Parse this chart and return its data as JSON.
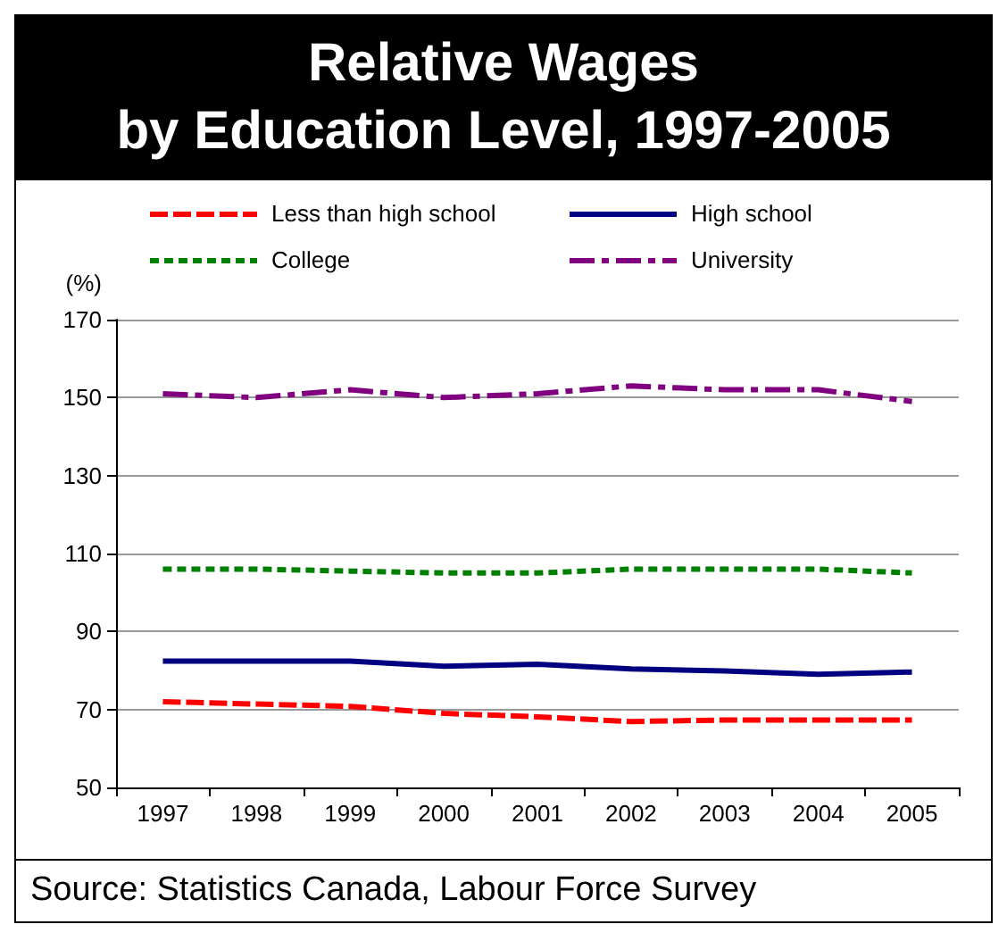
{
  "chart_data": {
    "type": "line",
    "title": "Relative Wages\nby Education Level, 1997-2005",
    "ylabel": "(%)",
    "categories": [
      "1997",
      "1998",
      "1999",
      "2000",
      "2001",
      "2002",
      "2003",
      "2004",
      "2005"
    ],
    "series": [
      {
        "name": "Less than high school",
        "color": "#ff0000",
        "line_style": "dashed",
        "values": [
          72,
          71.4,
          70.8,
          69,
          68.1,
          66.9,
          67.3,
          67.3,
          67.3
        ]
      },
      {
        "name": "High school",
        "color": "#000080",
        "line_style": "solid",
        "values": [
          82.4,
          82.4,
          82.4,
          81.1,
          81.6,
          80.4,
          79.9,
          79,
          79.6
        ]
      },
      {
        "name": "College",
        "color": "#008000",
        "line_style": "dotted",
        "values": [
          106,
          106,
          105.5,
          105,
          105,
          106,
          106,
          106,
          105
        ]
      },
      {
        "name": "University",
        "color": "#800080",
        "line_style": "dashdot",
        "values": [
          151,
          150,
          152,
          150,
          151,
          153,
          152,
          152,
          149
        ]
      }
    ],
    "ylim": [
      50,
      170
    ],
    "yticks": [
      50,
      70,
      90,
      110,
      130,
      150,
      170
    ],
    "grid": "y",
    "legend": "top",
    "marker": "none",
    "annotations": [
      "Source: Statistics Canada, Labour Force Survey"
    ]
  }
}
